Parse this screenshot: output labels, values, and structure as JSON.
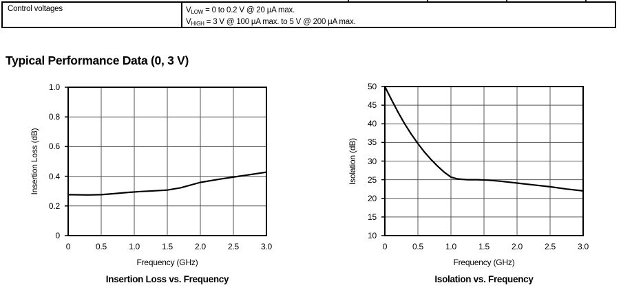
{
  "table": {
    "row_label": "Control voltages",
    "lines": [
      {
        "base": "V",
        "sub": "LOW",
        "rest": " = 0 to 0.2 V @ 20 µA max."
      },
      {
        "base": "V",
        "sub": "HIGH",
        "rest": " = 3 V @ 100 µA max. to 5 V @ 200 µA max."
      }
    ]
  },
  "heading": "Typical Performance Data (0, 3 V)",
  "colors": {
    "text": "#000000",
    "grid": "#555555",
    "frame": "#000000",
    "curve": "#000000",
    "background": "#ffffff"
  },
  "chart_data": [
    {
      "type": "line",
      "title": "Insertion Loss vs. Frequency",
      "xlabel": "Frequency (GHz)",
      "ylabel": "Insertion Loss (dB)",
      "xlim": [
        0,
        3.0
      ],
      "ylim": [
        0,
        1.0
      ],
      "xtick_values": [
        0,
        0.5,
        1.0,
        1.5,
        2.0,
        2.5,
        3.0
      ],
      "xtick_labels": [
        "0",
        "0.5",
        "1.0",
        "1.5",
        "2.0",
        "2.5",
        "3.0"
      ],
      "ytick_values": [
        0,
        0.2,
        0.4,
        0.6,
        0.8,
        1.0
      ],
      "ytick_labels": [
        "0",
        "0.2",
        "0.4",
        "0.6",
        "0.8",
        "1.0"
      ],
      "grid": true,
      "legend": "none",
      "series": [
        {
          "name": "Insertion Loss",
          "x": [
            0,
            0.3,
            0.5,
            0.7,
            0.9,
            1.1,
            1.3,
            1.5,
            1.7,
            2.0,
            2.3,
            2.6,
            3.0
          ],
          "y": [
            0.276,
            0.274,
            0.276,
            0.283,
            0.291,
            0.297,
            0.302,
            0.307,
            0.322,
            0.359,
            0.381,
            0.401,
            0.428
          ]
        }
      ]
    },
    {
      "type": "line",
      "title": "Isolation vs. Frequency",
      "xlabel": "Frequency (GHz)",
      "ylabel": "Isolation (dB)",
      "xlim": [
        0,
        3.0
      ],
      "ylim": [
        10,
        50
      ],
      "xtick_values": [
        0,
        0.5,
        1.0,
        1.5,
        2.0,
        2.5,
        3.0
      ],
      "xtick_labels": [
        "0",
        "0.5",
        "1.0",
        "1.5",
        "2.0",
        "2.5",
        "3.0"
      ],
      "ytick_values": [
        10,
        15,
        20,
        25,
        30,
        35,
        40,
        45,
        50
      ],
      "ytick_labels": [
        "10",
        "15",
        "20",
        "25",
        "30",
        "35",
        "40",
        "45",
        "50"
      ],
      "grid": true,
      "legend": "none",
      "series": [
        {
          "name": "Isolation",
          "x": [
            0,
            0.1,
            0.2,
            0.3,
            0.4,
            0.5,
            0.6,
            0.7,
            0.8,
            0.9,
            1.0,
            1.1,
            1.25,
            1.4,
            1.55,
            1.75,
            2.0,
            2.25,
            2.5,
            2.75,
            3.0
          ],
          "y": [
            50,
            46.5,
            43.1,
            40.0,
            37.2,
            34.7,
            32.4,
            30.4,
            28.6,
            27.0,
            25.7,
            25.2,
            25.0,
            25.0,
            24.9,
            24.6,
            24.1,
            23.6,
            23.1,
            22.5,
            22.0
          ]
        }
      ]
    }
  ]
}
